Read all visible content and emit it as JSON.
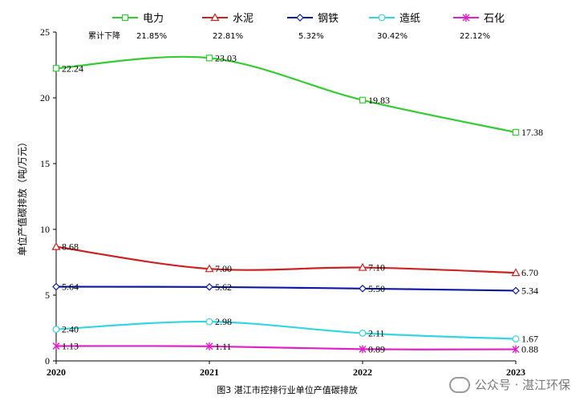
{
  "chart_data": {
    "type": "line",
    "title": "",
    "caption": "图3 湛江市控排行业单位产值碳排放",
    "ylabel": "单位产值碳排放（吨/万元）",
    "xlabel": "",
    "categories": [
      "2020",
      "2021",
      "2022",
      "2023"
    ],
    "ylim": [
      0,
      25
    ],
    "yticks": [
      0,
      5,
      10,
      15,
      20,
      25
    ],
    "grid": false,
    "legend_position": "top",
    "decline_label": "累计下降",
    "series": [
      {
        "name": "电力",
        "color": "#33cc33",
        "marker": "square",
        "values": [
          22.24,
          23.03,
          19.83,
          17.38
        ],
        "labels": [
          "22.24",
          "23.03",
          "19.83",
          "17.38"
        ],
        "decline": "21.85%"
      },
      {
        "name": "水泥",
        "color": "#cc2222",
        "marker": "triangle",
        "values": [
          8.68,
          7.0,
          7.1,
          6.7
        ],
        "labels": [
          "8.68",
          "7.00",
          "7.10",
          "6.70"
        ],
        "decline": "22.81%"
      },
      {
        "name": "钢铁",
        "color": "#0a1aa0",
        "marker": "diamond",
        "values": [
          5.64,
          5.62,
          5.5,
          5.34
        ],
        "labels": [
          "5.64",
          "5.62",
          "5.50",
          "5.34"
        ],
        "decline": "5.32%"
      },
      {
        "name": "造纸",
        "color": "#33d6e0",
        "marker": "circle",
        "values": [
          2.4,
          2.98,
          2.11,
          1.67
        ],
        "labels": [
          "2.40",
          "2.98",
          "2.11",
          "1.67"
        ],
        "decline": "30.42%"
      },
      {
        "name": "石化",
        "color": "#e020c8",
        "marker": "star",
        "values": [
          1.13,
          1.11,
          0.89,
          0.88
        ],
        "labels": [
          "1.13",
          "1.11",
          "0.89",
          "0.88"
        ],
        "decline": "22.12%"
      }
    ]
  },
  "watermark": "公众号 · 湛江环保"
}
